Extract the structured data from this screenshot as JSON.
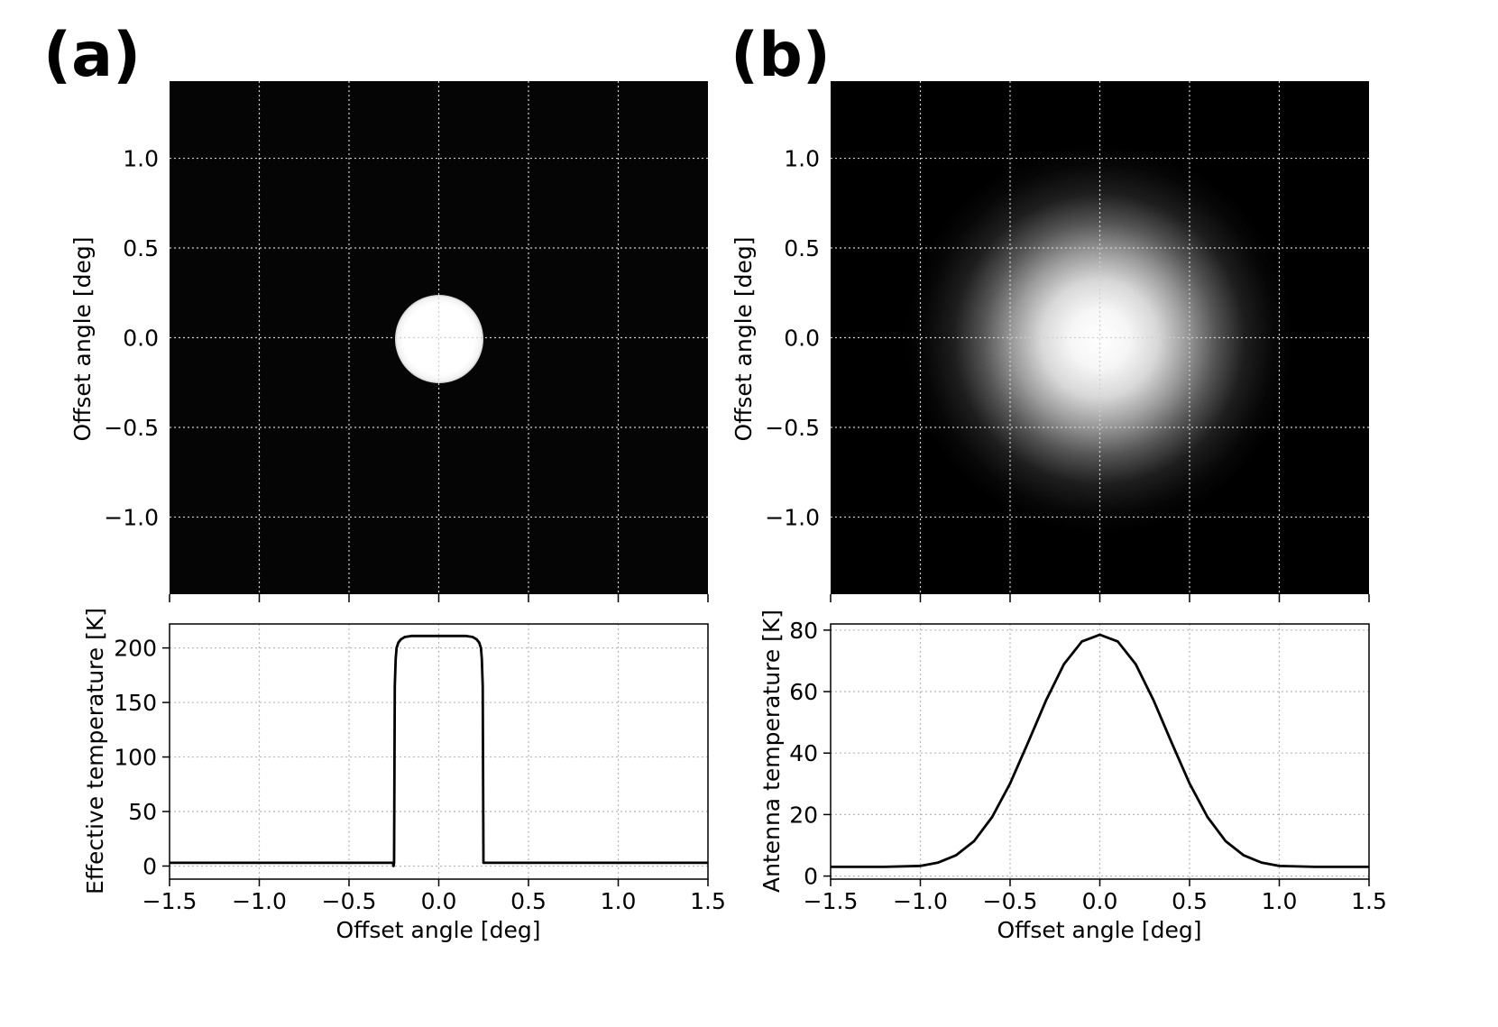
{
  "panels": [
    {
      "id": "a",
      "label": "(a)"
    },
    {
      "id": "b",
      "label": "(b)"
    }
  ],
  "chart_data": [
    {
      "panel": "a",
      "type": "heatmap",
      "title": "",
      "description_kind": "uniform disk",
      "disk_radius_deg": 0.25,
      "xlim": [
        -1.5,
        1.5
      ],
      "ylim": [
        -1.43,
        1.43
      ],
      "xlabel": "",
      "ylabel": "Offset angle [deg]",
      "yticks": [
        1.0,
        0.5,
        0.0,
        -0.5,
        -1.0
      ],
      "ytick_labels": [
        "1.0",
        "0.5",
        "0.0",
        "−0.5",
        "−1.0"
      ],
      "xticks": [
        -1.5,
        -1.0,
        -0.5,
        0.0,
        0.5,
        1.0,
        1.5
      ],
      "grid": true
    },
    {
      "panel": "a",
      "type": "line",
      "xlabel": "Offset angle [deg]",
      "ylabel": "Effective temperature [K]",
      "xlim": [
        -1.5,
        1.5
      ],
      "ylim": [
        -12,
        222
      ],
      "xticks": [
        -1.5,
        -1.0,
        -0.5,
        0.0,
        0.5,
        1.0,
        1.5
      ],
      "xtick_labels": [
        "−1.5",
        "−1.0",
        "−0.5",
        "0.0",
        "0.5",
        "1.0",
        "1.5"
      ],
      "yticks": [
        0,
        50,
        100,
        150,
        200
      ],
      "ytick_labels": [
        "0",
        "50",
        "100",
        "150",
        "200"
      ],
      "grid": true,
      "series": [
        {
          "name": "Effective temperature",
          "x": [
            -1.5,
            -0.255,
            -0.252,
            -0.249,
            -0.245,
            -0.24,
            -0.235,
            -0.225,
            -0.21,
            -0.19,
            -0.15,
            -0.1,
            0.0,
            0.1,
            0.15,
            0.19,
            0.21,
            0.225,
            0.235,
            0.24,
            0.245,
            0.249,
            0.252,
            0.255,
            1.5
          ],
          "values": [
            3,
            3,
            0,
            3,
            165,
            190,
            200,
            205,
            208,
            210,
            211,
            211,
            211,
            211,
            211,
            210,
            208,
            205,
            200,
            190,
            165,
            3,
            3,
            3,
            3
          ]
        }
      ]
    },
    {
      "panel": "b",
      "type": "heatmap",
      "title": "",
      "description_kind": "gaussian blur",
      "xlim": [
        -1.5,
        1.5
      ],
      "ylim": [
        -1.43,
        1.43
      ],
      "xlabel": "",
      "ylabel": "Offset angle [deg]",
      "yticks": [
        1.0,
        0.5,
        0.0,
        -0.5,
        -1.0
      ],
      "ytick_labels": [
        "1.0",
        "0.5",
        "0.0",
        "−0.5",
        "−1.0"
      ],
      "xticks": [
        -1.5,
        -1.0,
        -0.5,
        0.0,
        0.5,
        1.0,
        1.5
      ],
      "grid": true
    },
    {
      "panel": "b",
      "type": "line",
      "xlabel": "Offset angle [deg]",
      "ylabel": "Antenna temperature [K]",
      "xlim": [
        -1.5,
        1.5
      ],
      "ylim": [
        -1,
        82
      ],
      "xticks": [
        -1.5,
        -1.0,
        -0.5,
        0.0,
        0.5,
        1.0,
        1.5
      ],
      "xtick_labels": [
        "−1.5",
        "−1.0",
        "−0.5",
        "0.0",
        "0.5",
        "1.0",
        "1.5"
      ],
      "yticks": [
        0,
        20,
        40,
        60,
        80
      ],
      "ytick_labels": [
        "0",
        "20",
        "40",
        "60",
        "80"
      ],
      "grid": true,
      "series": [
        {
          "name": "Antenna temperature",
          "x": [
            -1.5,
            -1.2,
            -1.0,
            -0.9,
            -0.8,
            -0.7,
            -0.6,
            -0.5,
            -0.4,
            -0.3,
            -0.2,
            -0.1,
            0.0,
            0.1,
            0.2,
            0.3,
            0.4,
            0.5,
            0.6,
            0.7,
            0.8,
            0.9,
            1.0,
            1.2,
            1.5
          ],
          "values": [
            3.0,
            3.0,
            3.3,
            4.4,
            6.8,
            11.4,
            19.2,
            30.1,
            43.4,
            57.1,
            68.9,
            76.3,
            78.5,
            76.3,
            68.9,
            57.1,
            43.4,
            30.1,
            19.2,
            11.4,
            6.8,
            4.4,
            3.3,
            3.0,
            3.0
          ]
        }
      ]
    }
  ]
}
